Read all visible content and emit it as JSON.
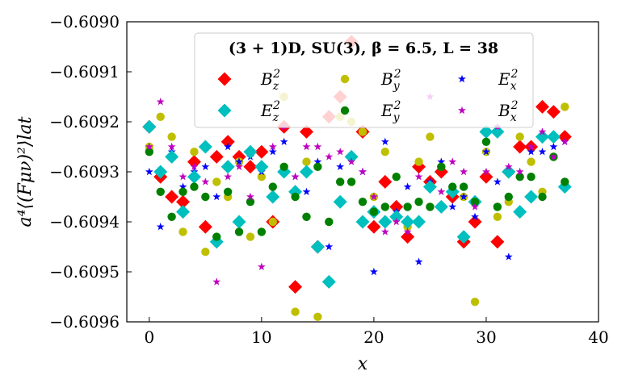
{
  "chart_data": {
    "type": "scatter",
    "title": "",
    "xlabel": "x",
    "ylabel": "a⁴⟨(Fμν)²⟩lat",
    "xlim": [
      -2,
      40
    ],
    "ylim": [
      -0.6096,
      -0.609
    ],
    "xticks": [
      0,
      10,
      20,
      30,
      40
    ],
    "xtick_labels": [
      "0",
      "10",
      "20",
      "30",
      "40"
    ],
    "yticks": [
      -0.6096,
      -0.6095,
      -0.6094,
      -0.6093,
      -0.6092,
      -0.6091,
      -0.609
    ],
    "ytick_labels": [
      "−0.6096",
      "−0.6095",
      "−0.6094",
      "−0.6093",
      "−0.6092",
      "−0.6091",
      "−0.6090"
    ],
    "grid": false,
    "legend": {
      "title": "(3 + 1)D, SU(3), β = 6.5, L = 38",
      "placement": "top-center",
      "columns": 3
    },
    "series": [
      {
        "name": "B_z²",
        "label_base": "B",
        "label_sub": "z",
        "label_sup": "2",
        "marker": "diamond",
        "color": "#ff0000",
        "x": [
          0,
          1,
          2,
          3,
          4,
          5,
          6,
          7,
          8,
          9,
          10,
          11,
          12,
          13,
          14,
          15,
          16,
          17,
          18,
          19,
          20,
          21,
          22,
          23,
          24,
          25,
          26,
          27,
          28,
          29,
          30,
          31,
          32,
          33,
          34,
          35,
          36,
          37
        ],
        "y": [
          -0.60921,
          -0.60931,
          -0.60935,
          -0.60936,
          -0.60928,
          -0.60941,
          -0.60927,
          -0.60924,
          -0.60927,
          -0.60929,
          -0.60926,
          -0.6094,
          -0.60921,
          -0.60953,
          -0.60922,
          -0.60945,
          -0.60919,
          -0.60915,
          -0.60904,
          -0.60922,
          -0.60941,
          -0.60932,
          -0.60937,
          -0.60943,
          -0.60929,
          -0.60932,
          -0.6093,
          -0.60935,
          -0.60944,
          -0.6094,
          -0.60931,
          -0.60944,
          -0.6093,
          -0.60925,
          -0.60925,
          -0.60917,
          -0.60918,
          -0.60923
        ]
      },
      {
        "name": "B_y²",
        "label_base": "B",
        "label_sub": "y",
        "label_sup": "2",
        "marker": "circle",
        "color": "#bfbf00",
        "x": [
          0,
          1,
          2,
          3,
          4,
          5,
          6,
          7,
          8,
          9,
          10,
          11,
          12,
          13,
          14,
          15,
          16,
          17,
          18,
          19,
          20,
          21,
          22,
          23,
          24,
          25,
          26,
          27,
          28,
          29,
          30,
          31,
          32,
          33,
          34,
          35,
          36,
          37
        ],
        "y": [
          -0.60925,
          -0.60919,
          -0.60923,
          -0.60942,
          -0.60926,
          -0.60946,
          -0.60932,
          -0.60935,
          -0.60928,
          -0.60943,
          -0.60931,
          -0.6094,
          -0.60915,
          -0.60958,
          -0.60928,
          -0.60959,
          -0.6094,
          -0.60919,
          -0.6092,
          -0.60922,
          -0.60935,
          -0.60926,
          -0.60939,
          -0.60941,
          -0.60928,
          -0.60923,
          -0.60929,
          -0.60934,
          -0.60935,
          -0.60956,
          -0.60926,
          -0.60939,
          -0.60936,
          -0.60923,
          -0.60928,
          -0.60934,
          -0.60927,
          -0.60917
        ]
      },
      {
        "name": "E_x²",
        "label_base": "E",
        "label_sub": "x",
        "label_sup": "2",
        "marker": "star",
        "color": "#0000ff",
        "x": [
          0,
          1,
          2,
          3,
          4,
          5,
          6,
          7,
          8,
          9,
          10,
          11,
          12,
          13,
          14,
          15,
          16,
          17,
          18,
          19,
          20,
          21,
          22,
          23,
          24,
          25,
          26,
          27,
          28,
          29,
          30,
          31,
          32,
          33,
          34,
          35,
          36,
          37
        ],
        "y": [
          -0.6093,
          -0.60941,
          -0.60926,
          -0.60933,
          -0.6093,
          -0.60929,
          -0.60935,
          -0.60925,
          -0.60928,
          -0.60927,
          -0.6093,
          -0.60926,
          -0.60924,
          -0.60931,
          -0.60934,
          -0.60928,
          -0.60945,
          -0.60929,
          -0.60932,
          -0.6093,
          -0.6095,
          -0.60924,
          -0.60938,
          -0.60933,
          -0.60948,
          -0.60932,
          -0.60928,
          -0.60937,
          -0.60935,
          -0.60939,
          -0.60926,
          -0.60932,
          -0.60947,
          -0.60938,
          -0.60926,
          -0.60926,
          -0.60925,
          -0.60924
        ]
      },
      {
        "name": "E_z²",
        "label_base": "E",
        "label_sub": "z",
        "label_sup": "2",
        "marker": "diamond",
        "color": "#00bfbf",
        "x": [
          0,
          1,
          2,
          3,
          4,
          5,
          6,
          7,
          8,
          9,
          10,
          11,
          12,
          13,
          14,
          15,
          16,
          17,
          18,
          19,
          20,
          21,
          22,
          23,
          24,
          25,
          26,
          27,
          28,
          29,
          30,
          31,
          32,
          33,
          34,
          35,
          36,
          37
        ],
        "y": [
          -0.60921,
          -0.6093,
          -0.60927,
          -0.60938,
          -0.60931,
          -0.60925,
          -0.60944,
          -0.60929,
          -0.6094,
          -0.60926,
          -0.60929,
          -0.60935,
          -0.6093,
          -0.60934,
          -0.6093,
          -0.60945,
          -0.60952,
          -0.60936,
          -0.60927,
          -0.6094,
          -0.60938,
          -0.6094,
          -0.60939,
          -0.6094,
          -0.6094,
          -0.60933,
          -0.60937,
          -0.60934,
          -0.60943,
          -0.60936,
          -0.60922,
          -0.60922,
          -0.6093,
          -0.60938,
          -0.60935,
          -0.60923,
          -0.60923,
          -0.60933
        ]
      },
      {
        "name": "E_y²",
        "label_base": "E",
        "label_sub": "y",
        "label_sup": "2",
        "marker": "circle",
        "color": "#008000",
        "x": [
          0,
          1,
          2,
          3,
          4,
          5,
          6,
          7,
          8,
          9,
          10,
          11,
          12,
          13,
          14,
          15,
          16,
          17,
          18,
          19,
          20,
          21,
          22,
          23,
          24,
          25,
          26,
          27,
          28,
          29,
          30,
          31,
          32,
          33,
          34,
          35,
          36,
          37
        ],
        "y": [
          -0.60926,
          -0.60934,
          -0.60939,
          -0.60934,
          -0.60933,
          -0.60935,
          -0.60943,
          -0.60934,
          -0.60942,
          -0.60936,
          -0.60942,
          -0.60933,
          -0.60929,
          -0.60935,
          -0.60939,
          -0.60929,
          -0.6094,
          -0.60932,
          -0.60932,
          -0.60936,
          -0.60938,
          -0.60937,
          -0.60931,
          -0.60937,
          -0.60936,
          -0.60937,
          -0.60929,
          -0.60933,
          -0.60933,
          -0.60936,
          -0.60924,
          -0.60937,
          -0.60935,
          -0.60931,
          -0.60931,
          -0.60935,
          -0.60927,
          -0.60932
        ]
      },
      {
        "name": "B_x²",
        "label_base": "B",
        "label_sub": "x",
        "label_sup": "2",
        "marker": "star",
        "color": "#bf00bf",
        "x": [
          0,
          1,
          2,
          3,
          4,
          5,
          6,
          7,
          8,
          9,
          10,
          11,
          12,
          13,
          14,
          15,
          16,
          17,
          18,
          19,
          20,
          21,
          22,
          23,
          24,
          25,
          26,
          27,
          28,
          29,
          30,
          31,
          32,
          33,
          34,
          35,
          36,
          37
        ],
        "y": [
          -0.60925,
          -0.60916,
          -0.60925,
          -0.60931,
          -0.60929,
          -0.60932,
          -0.60952,
          -0.60931,
          -0.60929,
          -0.60935,
          -0.60949,
          -0.60925,
          -0.60921,
          -0.60931,
          -0.60925,
          -0.60925,
          -0.60927,
          -0.60926,
          -0.60928,
          -0.6093,
          -0.60935,
          -0.60942,
          -0.6094,
          -0.60942,
          -0.60931,
          -0.60915,
          -0.60934,
          -0.60928,
          -0.6093,
          -0.60937,
          -0.6093,
          -0.60921,
          -0.60929,
          -0.6093,
          -0.60925,
          -0.60922,
          -0.60927,
          -0.60924
        ]
      }
    ]
  }
}
